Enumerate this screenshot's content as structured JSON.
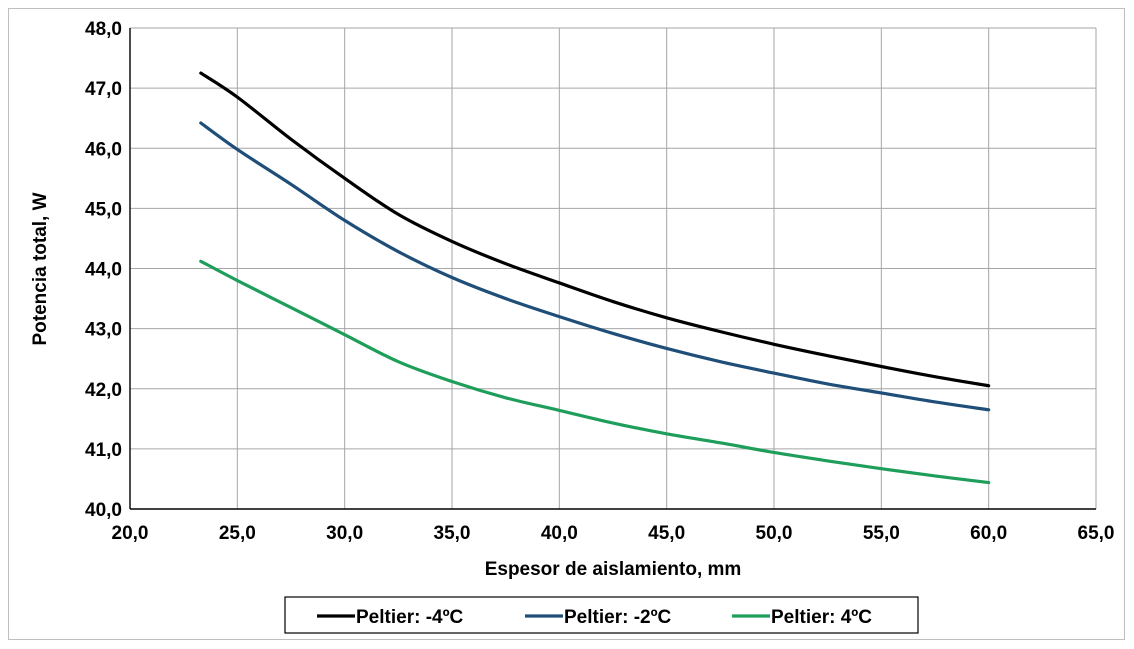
{
  "chart_data": {
    "type": "line",
    "title": "",
    "xlabel": "Espesor de aislamiento,  mm",
    "ylabel": "Potencia total, W",
    "xlim": [
      20.0,
      65.0
    ],
    "ylim": [
      40.0,
      48.0
    ],
    "xticks": [
      "20,0",
      "25,0",
      "30,0",
      "35,0",
      "40,0",
      "45,0",
      "50,0",
      "55,0",
      "60,0",
      "65,0"
    ],
    "yticks": [
      "40,0",
      "41,0",
      "42,0",
      "43,0",
      "44,0",
      "45,0",
      "46,0",
      "47,0",
      "48,0"
    ],
    "grid": true,
    "legend": "bottom",
    "x": [
      23.3,
      25,
      27.5,
      30,
      32.5,
      35,
      37.5,
      40,
      42.5,
      45,
      47.5,
      50,
      52.5,
      55,
      57.5,
      60
    ],
    "series": [
      {
        "name": "Peltier: -4ºC",
        "color": "#000000",
        "values": [
          47.25,
          46.85,
          46.15,
          45.5,
          44.9,
          44.45,
          44.08,
          43.76,
          43.45,
          43.18,
          42.95,
          42.74,
          42.55,
          42.37,
          42.2,
          42.05
        ]
      },
      {
        "name": "Peltier: -2ºC",
        "color": "#1f4e79",
        "values": [
          46.42,
          45.98,
          45.4,
          44.8,
          44.28,
          43.85,
          43.5,
          43.2,
          42.92,
          42.67,
          42.45,
          42.26,
          42.08,
          41.93,
          41.78,
          41.65
        ]
      },
      {
        "name": "Peltier: 4ºC",
        "color": "#1e9e5a",
        "values": [
          44.12,
          43.8,
          43.35,
          42.9,
          42.45,
          42.12,
          41.85,
          41.64,
          41.43,
          41.25,
          41.1,
          40.94,
          40.8,
          40.67,
          40.55,
          40.44
        ]
      }
    ]
  }
}
